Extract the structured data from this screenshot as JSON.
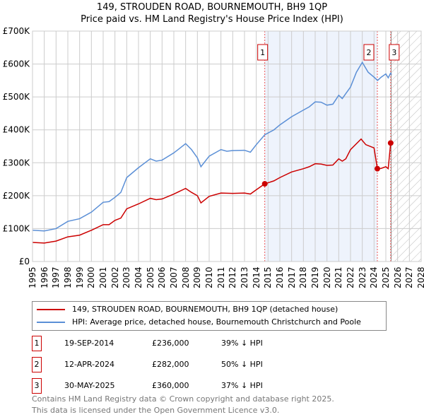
{
  "title": "149, STROUDEN ROAD, BOURNEMOUTH, BH9 1QP",
  "subtitle": "Price paid vs. HM Land Registry's House Price Index (HPI)",
  "chart_data": {
    "type": "line",
    "xlim": [
      1995,
      2028
    ],
    "ylim": [
      0,
      700000
    ],
    "y_ticks": [
      {
        "v": 0,
        "label": "£0"
      },
      {
        "v": 100000,
        "label": "£100K"
      },
      {
        "v": 200000,
        "label": "£200K"
      },
      {
        "v": 300000,
        "label": "£300K"
      },
      {
        "v": 400000,
        "label": "£400K"
      },
      {
        "v": 500000,
        "label": "£500K"
      },
      {
        "v": 600000,
        "label": "£600K"
      },
      {
        "v": 700000,
        "label": "£700K"
      }
    ],
    "x_ticks": [
      "1995",
      "1996",
      "1997",
      "1998",
      "1999",
      "2000",
      "2001",
      "2002",
      "2003",
      "2004",
      "2005",
      "2006",
      "2007",
      "2008",
      "2009",
      "2010",
      "2011",
      "2012",
      "2013",
      "2014",
      "2015",
      "2016",
      "2017",
      "2018",
      "2019",
      "2020",
      "2021",
      "2022",
      "2023",
      "2024",
      "2025",
      "2026",
      "2027",
      "2028"
    ],
    "shaded_range": [
      2014.72,
      2024.28
    ],
    "forecast_hatch_from": 2025.45,
    "series": [
      {
        "name": "149, STROUDEN ROAD, BOURNEMOUTH, BH9 1QP (detached house)",
        "color": "#cc0000",
        "points": [
          [
            1995,
            58
          ],
          [
            1996,
            56
          ],
          [
            1997,
            62
          ],
          [
            1998,
            75
          ],
          [
            1999,
            80
          ],
          [
            2000,
            95
          ],
          [
            2001,
            112
          ],
          [
            2001.5,
            112
          ],
          [
            2002,
            125
          ],
          [
            2002.5,
            132
          ],
          [
            2003,
            160
          ],
          [
            2004,
            175
          ],
          [
            2005,
            192
          ],
          [
            2005.5,
            188
          ],
          [
            2006,
            190
          ],
          [
            2007,
            205
          ],
          [
            2008,
            222
          ],
          [
            2008.5,
            210
          ],
          [
            2009,
            200
          ],
          [
            2009.3,
            178
          ],
          [
            2010,
            198
          ],
          [
            2011,
            208
          ],
          [
            2012,
            207
          ],
          [
            2013,
            208
          ],
          [
            2013.5,
            205
          ],
          [
            2014,
            218
          ],
          [
            2014.72,
            236
          ],
          [
            2015.5,
            245
          ],
          [
            2016,
            255
          ],
          [
            2017,
            272
          ],
          [
            2018,
            282
          ],
          [
            2018.5,
            288
          ],
          [
            2019,
            297
          ],
          [
            2019.5,
            296
          ],
          [
            2020,
            292
          ],
          [
            2020.5,
            293
          ],
          [
            2021,
            312
          ],
          [
            2021.3,
            305
          ],
          [
            2021.6,
            312
          ],
          [
            2022,
            340
          ],
          [
            2022.9,
            372
          ],
          [
            2023.3,
            355
          ],
          [
            2024,
            345
          ],
          [
            2024.28,
            282
          ],
          [
            2024.6,
            283
          ],
          [
            2025,
            288
          ],
          [
            2025.2,
            282
          ],
          [
            2025.41,
            360
          ]
        ]
      },
      {
        "name": "HPI: Average price, detached house, Bournemouth Christchurch and Poole",
        "color": "#5b8fd6",
        "points": [
          [
            1995,
            95
          ],
          [
            1996,
            93
          ],
          [
            1997,
            100
          ],
          [
            1998,
            122
          ],
          [
            1999,
            130
          ],
          [
            2000,
            150
          ],
          [
            2001,
            180
          ],
          [
            2001.5,
            182
          ],
          [
            2002,
            195
          ],
          [
            2002.5,
            210
          ],
          [
            2003,
            255
          ],
          [
            2004,
            285
          ],
          [
            2005,
            312
          ],
          [
            2005.5,
            305
          ],
          [
            2006,
            308
          ],
          [
            2007,
            330
          ],
          [
            2008,
            358
          ],
          [
            2008.5,
            340
          ],
          [
            2009,
            315
          ],
          [
            2009.3,
            288
          ],
          [
            2010,
            320
          ],
          [
            2011,
            340
          ],
          [
            2011.5,
            335
          ],
          [
            2012,
            337
          ],
          [
            2013,
            338
          ],
          [
            2013.5,
            332
          ],
          [
            2014,
            355
          ],
          [
            2014.72,
            385
          ],
          [
            2015.5,
            400
          ],
          [
            2016,
            415
          ],
          [
            2017,
            440
          ],
          [
            2018,
            460
          ],
          [
            2018.5,
            470
          ],
          [
            2019,
            485
          ],
          [
            2019.5,
            484
          ],
          [
            2020,
            475
          ],
          [
            2020.5,
            478
          ],
          [
            2021,
            505
          ],
          [
            2021.3,
            495
          ],
          [
            2021.6,
            510
          ],
          [
            2022,
            530
          ],
          [
            2022.5,
            575
          ],
          [
            2023,
            605
          ],
          [
            2023.5,
            575
          ],
          [
            2024,
            560
          ],
          [
            2024.3,
            550
          ],
          [
            2024.6,
            560
          ],
          [
            2025,
            570
          ],
          [
            2025.2,
            558
          ],
          [
            2025.4,
            572
          ],
          [
            2025.5,
            568
          ]
        ]
      }
    ],
    "markers": [
      {
        "label": "1",
        "x": 2014.72,
        "y": 236
      },
      {
        "label": "2",
        "x": 2024.28,
        "y": 282
      },
      {
        "label": "3",
        "x": 2025.41,
        "y": 360
      }
    ]
  },
  "legend": {
    "red": "149, STROUDEN ROAD, BOURNEMOUTH, BH9 1QP (detached house)",
    "blue": "HPI: Average price, detached house, Bournemouth Christchurch and Poole"
  },
  "transactions": [
    {
      "num": "1",
      "date": "19-SEP-2014",
      "price": "£236,000",
      "hpi": "39% ↓ HPI"
    },
    {
      "num": "2",
      "date": "12-APR-2024",
      "price": "£282,000",
      "hpi": "50% ↓ HPI"
    },
    {
      "num": "3",
      "date": "30-MAY-2025",
      "price": "£360,000",
      "hpi": "37% ↓ HPI"
    }
  ],
  "footer": {
    "line1": "Contains HM Land Registry data © Crown copyright and database right 2025.",
    "line2": "This data is licensed under the Open Government Licence v3.0."
  }
}
